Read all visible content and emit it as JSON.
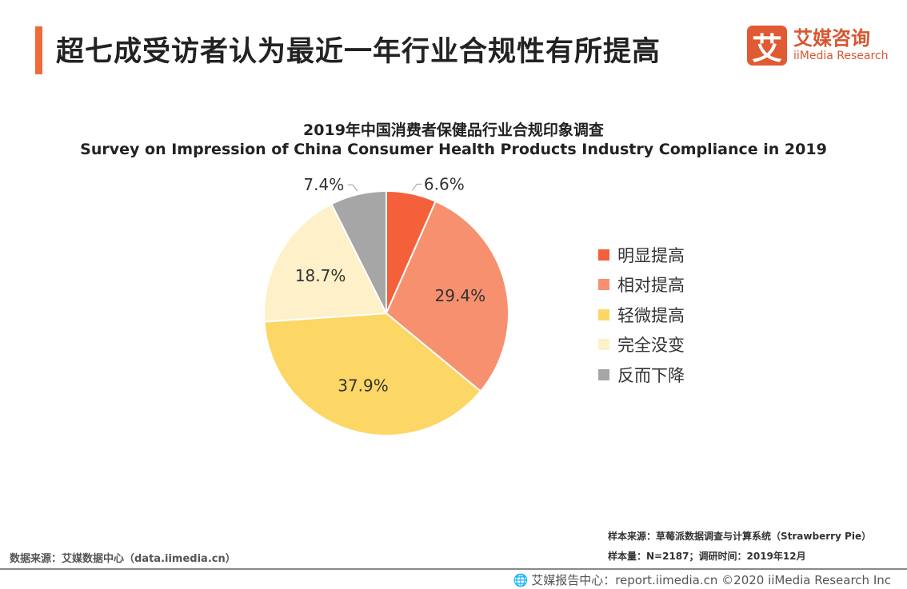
{
  "header": {
    "title": "超七成受访者认为最近一年行业合规性有所提高",
    "accent_color": "#f06a3c"
  },
  "logo": {
    "mark": "艾",
    "name_cn": "艾媒咨询",
    "name_en": "iiMedia Research",
    "color": "#e05a33"
  },
  "chart_data": {
    "type": "pie",
    "title": "2019年中国消费者保健品行业合规印象调查",
    "subtitle": "Survey on Impression of China Consumer Health Products Industry Compliance in 2019",
    "categories": [
      "明显提高",
      "相对提高",
      "轻微提高",
      "完全没变",
      "反而下降"
    ],
    "values": [
      6.6,
      29.4,
      37.9,
      18.7,
      7.4
    ],
    "labels": [
      "6.6%",
      "29.4%",
      "37.9%",
      "18.7%",
      "7.4%"
    ],
    "colors": [
      "#f4603a",
      "#f7906f",
      "#fdd766",
      "#fef0c8",
      "#a6a6a6"
    ],
    "start": "top",
    "direction": "clockwise",
    "legend": "right"
  },
  "source": {
    "sample_source": "样本来源：草莓派数据调查与计算系统（Strawberry Pie）",
    "sample_size": "样本量：N=2187；调研时间：2019年12月",
    "data_source": "数据来源：艾媒数据中心（data.iimedia.cn）"
  },
  "footer": {
    "text": "艾媒报告中心：report.iimedia.cn ©2020  iiMedia Research Inc"
  }
}
